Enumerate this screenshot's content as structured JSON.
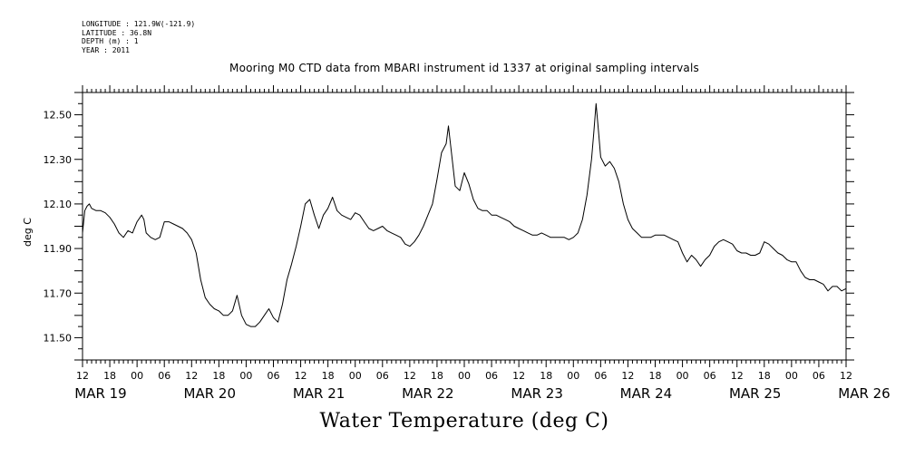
{
  "meta": {
    "longitude": "LONGITUDE : 121.9W(-121.9)",
    "latitude": "LATITUDE : 36.8N",
    "depth": "DEPTH (m) : 1",
    "year": "YEAR : 2011"
  },
  "chart_data": {
    "type": "line",
    "title": "Mooring M0 CTD data from MBARI instrument id 1337 at original sampling intervals",
    "xlabel": "Water Temperature (deg C)",
    "ylabel": "deg C",
    "x_unit": "hours since 2011-03-19 12:00",
    "xlim": [
      0,
      168
    ],
    "ylim": [
      11.4,
      12.6
    ],
    "y_ticks": [
      "12.50",
      "12.30",
      "12.10",
      "11.90",
      "11.70",
      "11.50"
    ],
    "x_hour_ticks": [
      "12",
      "18",
      "00",
      "06",
      "12",
      "18",
      "00",
      "06",
      "12",
      "18",
      "00",
      "06",
      "12",
      "18",
      "00",
      "06",
      "12",
      "18",
      "00",
      "06",
      "12",
      "18",
      "00",
      "06",
      "12",
      "18",
      "00",
      "06",
      "12"
    ],
    "x_day_labels": [
      "MAR 19",
      "MAR 20",
      "MAR 21",
      "MAR 22",
      "MAR 23",
      "MAR 24",
      "MAR 25",
      "MAR 26"
    ],
    "grid": false,
    "series": [
      {
        "name": "",
        "color": "#000000",
        "points": [
          [
            0,
            11.97
          ],
          [
            0.5,
            12.07
          ],
          [
            1,
            12.09
          ],
          [
            1.5,
            12.1
          ],
          [
            2,
            12.08
          ],
          [
            3,
            12.07
          ],
          [
            4,
            12.07
          ],
          [
            5,
            12.06
          ],
          [
            6,
            12.04
          ],
          [
            7,
            12.01
          ],
          [
            8,
            11.97
          ],
          [
            9,
            11.95
          ],
          [
            10,
            11.98
          ],
          [
            11,
            11.97
          ],
          [
            12,
            12.02
          ],
          [
            13,
            12.05
          ],
          [
            13.5,
            12.03
          ],
          [
            14,
            11.97
          ],
          [
            15,
            11.95
          ],
          [
            16,
            11.94
          ],
          [
            17,
            11.95
          ],
          [
            18,
            12.02
          ],
          [
            19,
            12.02
          ],
          [
            20,
            12.01
          ],
          [
            21,
            12.0
          ],
          [
            22,
            11.99
          ],
          [
            23,
            11.97
          ],
          [
            24,
            11.94
          ],
          [
            25,
            11.88
          ],
          [
            26,
            11.76
          ],
          [
            27,
            11.68
          ],
          [
            28,
            11.65
          ],
          [
            29,
            11.63
          ],
          [
            30,
            11.62
          ],
          [
            31,
            11.6
          ],
          [
            32,
            11.6
          ],
          [
            33,
            11.62
          ],
          [
            34,
            11.69
          ],
          [
            35,
            11.6
          ],
          [
            36,
            11.56
          ],
          [
            37,
            11.55
          ],
          [
            38,
            11.55
          ],
          [
            39,
            11.57
          ],
          [
            40,
            11.6
          ],
          [
            41,
            11.63
          ],
          [
            42,
            11.59
          ],
          [
            43,
            11.57
          ],
          [
            44,
            11.65
          ],
          [
            45,
            11.76
          ],
          [
            46,
            11.83
          ],
          [
            47,
            11.91
          ],
          [
            48,
            12.0
          ],
          [
            49,
            12.1
          ],
          [
            50,
            12.12
          ],
          [
            51,
            12.05
          ],
          [
            52,
            11.99
          ],
          [
            53,
            12.05
          ],
          [
            54,
            12.08
          ],
          [
            55,
            12.13
          ],
          [
            56,
            12.07
          ],
          [
            57,
            12.05
          ],
          [
            58,
            12.04
          ],
          [
            59,
            12.03
          ],
          [
            60,
            12.06
          ],
          [
            61,
            12.05
          ],
          [
            62,
            12.02
          ],
          [
            63,
            11.99
          ],
          [
            64,
            11.98
          ],
          [
            65,
            11.99
          ],
          [
            66,
            12.0
          ],
          [
            67,
            11.98
          ],
          [
            68,
            11.97
          ],
          [
            69,
            11.96
          ],
          [
            70,
            11.95
          ],
          [
            71,
            11.92
          ],
          [
            72,
            11.91
          ],
          [
            73,
            11.93
          ],
          [
            74,
            11.96
          ],
          [
            75,
            12.0
          ],
          [
            76,
            12.05
          ],
          [
            77,
            12.1
          ],
          [
            78,
            12.21
          ],
          [
            79,
            12.33
          ],
          [
            80,
            12.37
          ],
          [
            80.5,
            12.45
          ],
          [
            81,
            12.36
          ],
          [
            82,
            12.18
          ],
          [
            83,
            12.16
          ],
          [
            84,
            12.24
          ],
          [
            85,
            12.19
          ],
          [
            86,
            12.12
          ],
          [
            87,
            12.08
          ],
          [
            88,
            12.07
          ],
          [
            89,
            12.07
          ],
          [
            90,
            12.05
          ],
          [
            91,
            12.05
          ],
          [
            92,
            12.04
          ],
          [
            93,
            12.03
          ],
          [
            94,
            12.02
          ],
          [
            95,
            12.0
          ],
          [
            96,
            11.99
          ],
          [
            97,
            11.98
          ],
          [
            98,
            11.97
          ],
          [
            99,
            11.96
          ],
          [
            100,
            11.96
          ],
          [
            101,
            11.97
          ],
          [
            102,
            11.96
          ],
          [
            103,
            11.95
          ],
          [
            104,
            11.95
          ],
          [
            105,
            11.95
          ],
          [
            106,
            11.95
          ],
          [
            107,
            11.94
          ],
          [
            108,
            11.95
          ],
          [
            109,
            11.97
          ],
          [
            110,
            12.03
          ],
          [
            111,
            12.14
          ],
          [
            112,
            12.3
          ],
          [
            112.5,
            12.42
          ],
          [
            113,
            12.55
          ],
          [
            113.5,
            12.43
          ],
          [
            114,
            12.31
          ],
          [
            115,
            12.27
          ],
          [
            116,
            12.29
          ],
          [
            117,
            12.26
          ],
          [
            118,
            12.2
          ],
          [
            119,
            12.1
          ],
          [
            120,
            12.03
          ],
          [
            121,
            11.99
          ],
          [
            122,
            11.97
          ],
          [
            123,
            11.95
          ],
          [
            124,
            11.95
          ],
          [
            125,
            11.95
          ],
          [
            126,
            11.96
          ],
          [
            127,
            11.96
          ],
          [
            128,
            11.96
          ],
          [
            129,
            11.95
          ],
          [
            130,
            11.94
          ],
          [
            131,
            11.93
          ],
          [
            132,
            11.88
          ],
          [
            133,
            11.84
          ],
          [
            134,
            11.87
          ],
          [
            135,
            11.85
          ],
          [
            136,
            11.82
          ],
          [
            137,
            11.85
          ],
          [
            138,
            11.87
          ],
          [
            139,
            11.91
          ],
          [
            140,
            11.93
          ],
          [
            141,
            11.94
          ],
          [
            142,
            11.93
          ],
          [
            143,
            11.92
          ],
          [
            144,
            11.89
          ],
          [
            145,
            11.88
          ],
          [
            146,
            11.88
          ],
          [
            147,
            11.87
          ],
          [
            148,
            11.87
          ],
          [
            149,
            11.88
          ],
          [
            150,
            11.93
          ],
          [
            151,
            11.92
          ],
          [
            152,
            11.9
          ],
          [
            153,
            11.88
          ],
          [
            154,
            11.87
          ],
          [
            155,
            11.85
          ],
          [
            156,
            11.84
          ],
          [
            157,
            11.84
          ],
          [
            158,
            11.8
          ],
          [
            159,
            11.77
          ],
          [
            160,
            11.76
          ],
          [
            161,
            11.76
          ],
          [
            162,
            11.75
          ],
          [
            163,
            11.74
          ],
          [
            164,
            11.71
          ],
          [
            165,
            11.73
          ],
          [
            166,
            11.73
          ],
          [
            167,
            11.71
          ],
          [
            168,
            11.72
          ]
        ]
      }
    ]
  }
}
